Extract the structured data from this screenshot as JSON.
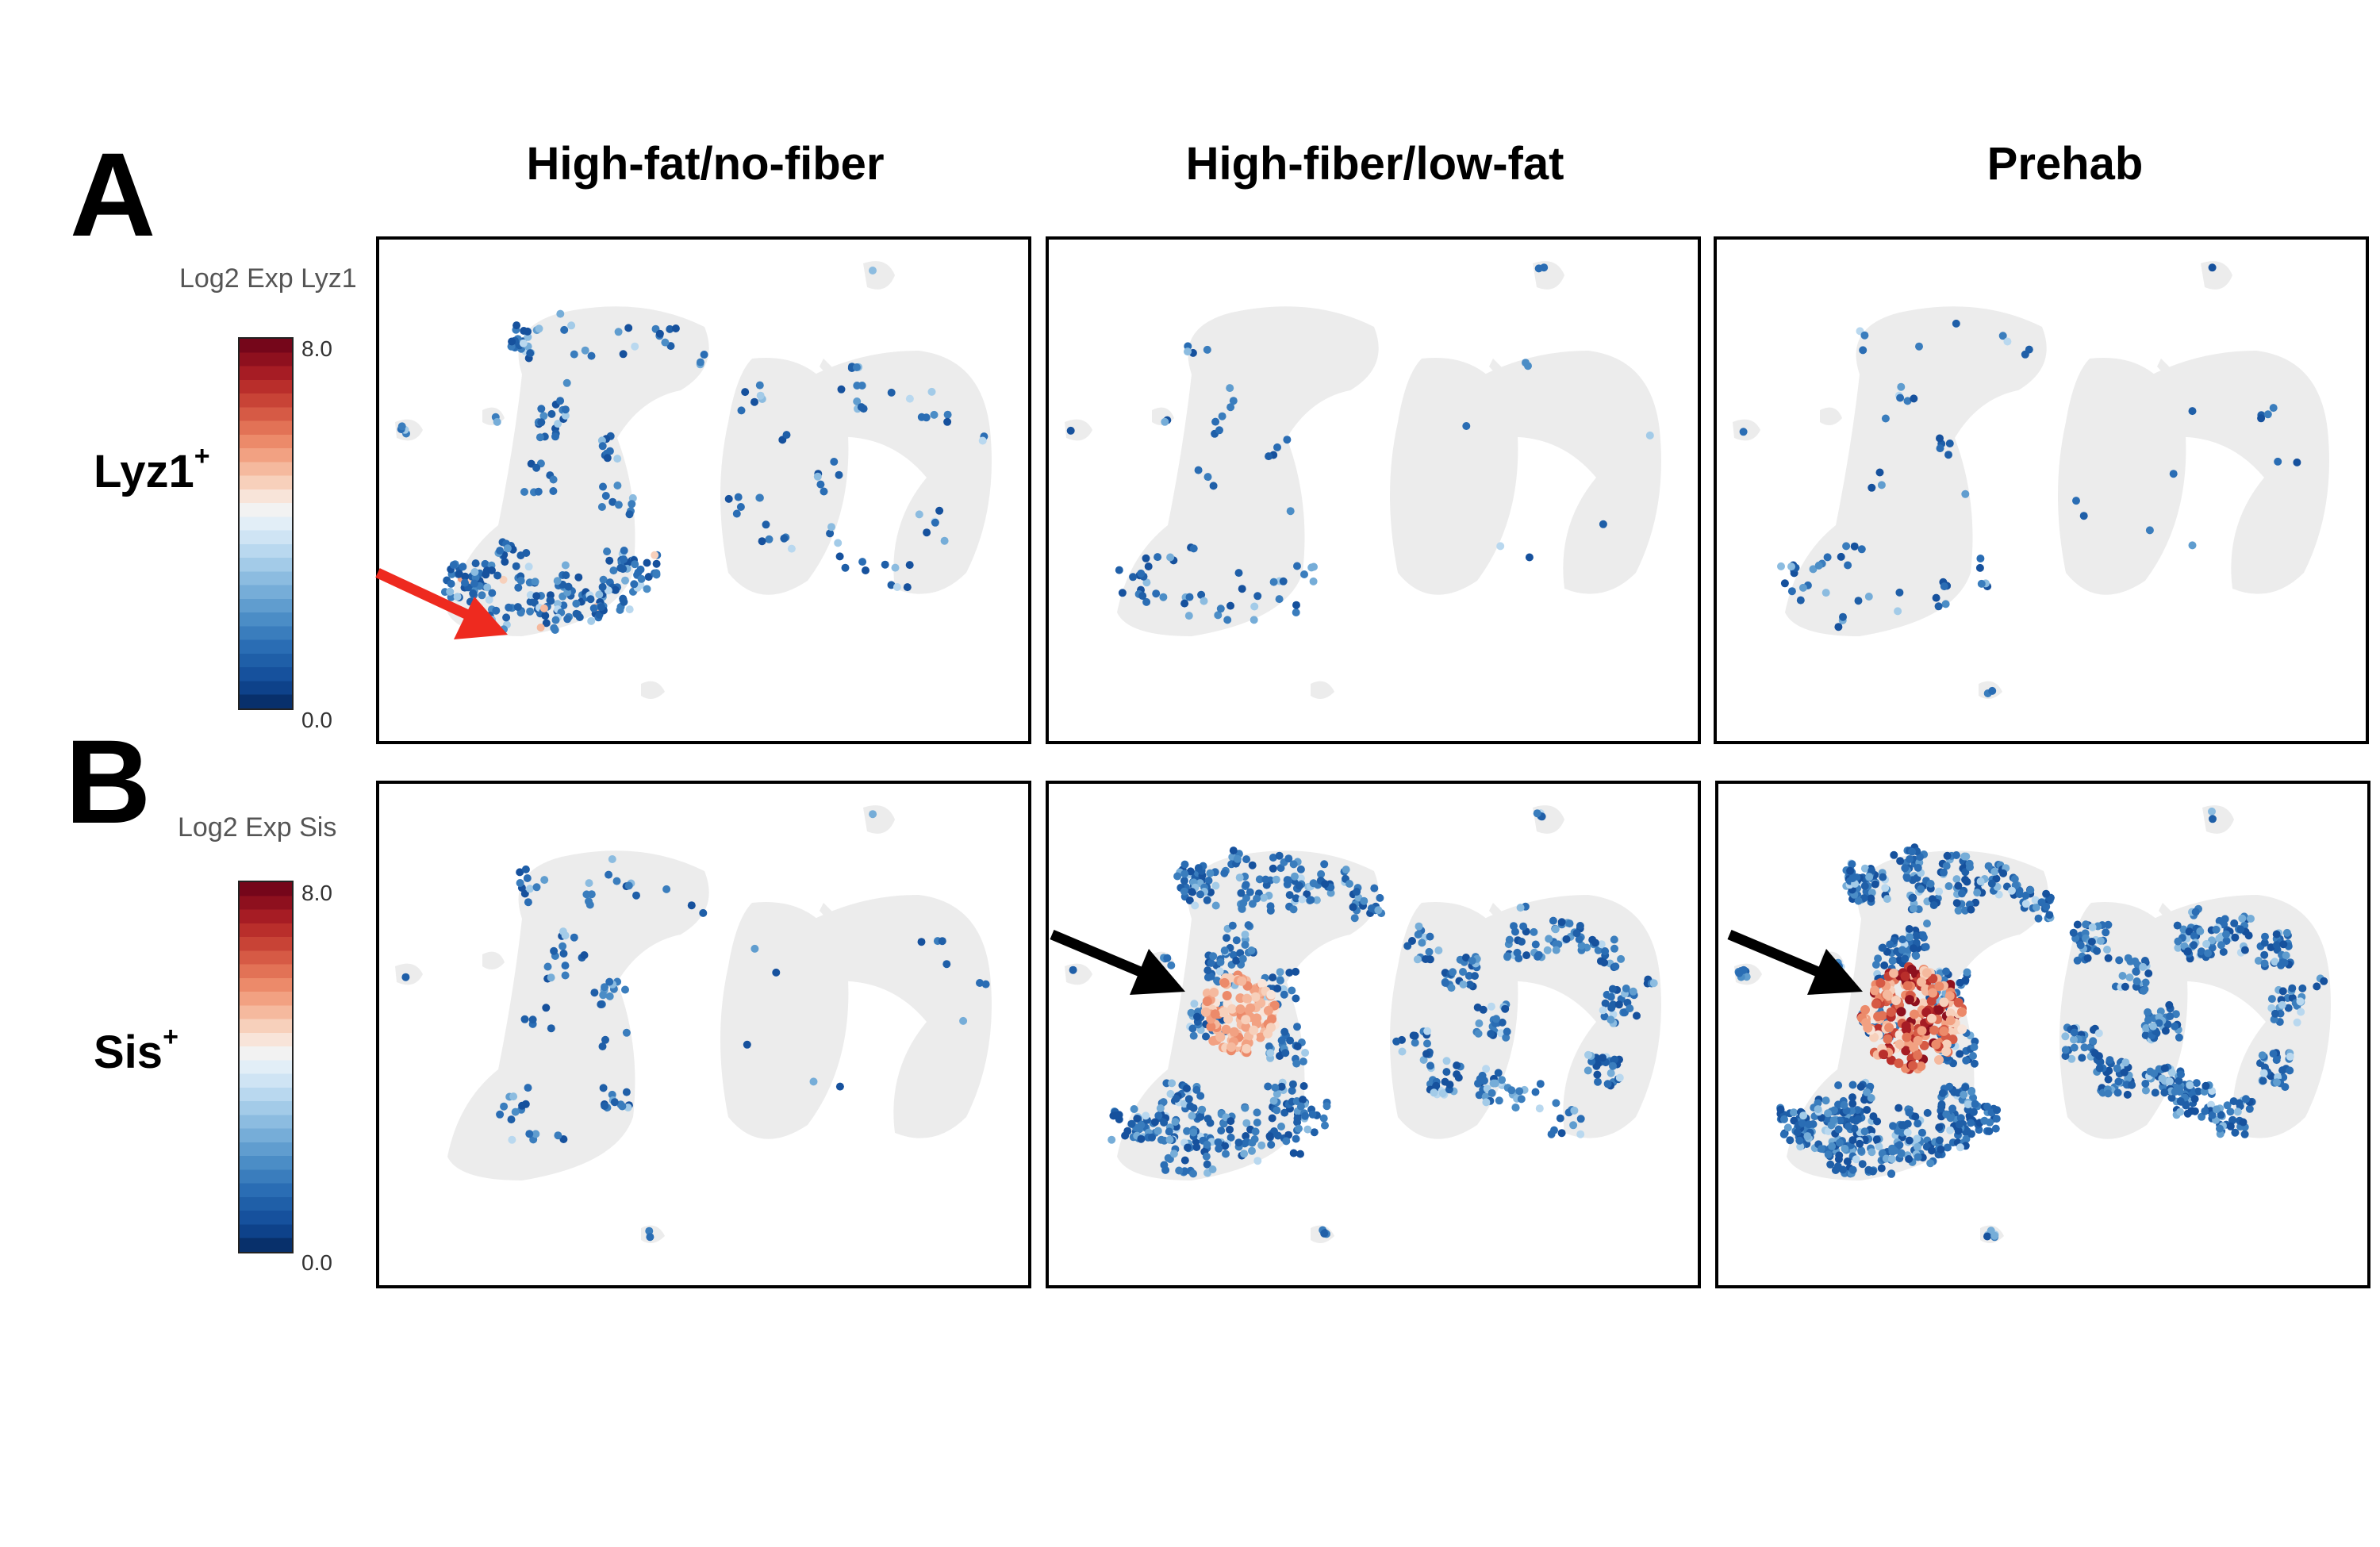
{
  "figure": {
    "panel_a_letter": "A",
    "panel_b_letter": "B",
    "columns": [
      "High-fat/no-fiber",
      "High-fiber/low-fat",
      "Prehab"
    ]
  },
  "rows": [
    {
      "gene_name": "Lyz1",
      "gene_sup": "+",
      "legend_title": "Log2 Exp Lyz1",
      "scale_max": "8.0",
      "scale_min": "0.0"
    },
    {
      "gene_name": "Sis",
      "gene_sup": "+",
      "legend_title": "Log2 Exp Sis",
      "scale_max": "8.0",
      "scale_min": "0.0"
    }
  ],
  "colors": {
    "background_cells": "#ececec",
    "low": "#1f5fa8",
    "mid": "#f2f2f2",
    "high": "#b2182b",
    "arrow_red": "#ee2a1f",
    "arrow_black": "#000000"
  }
}
